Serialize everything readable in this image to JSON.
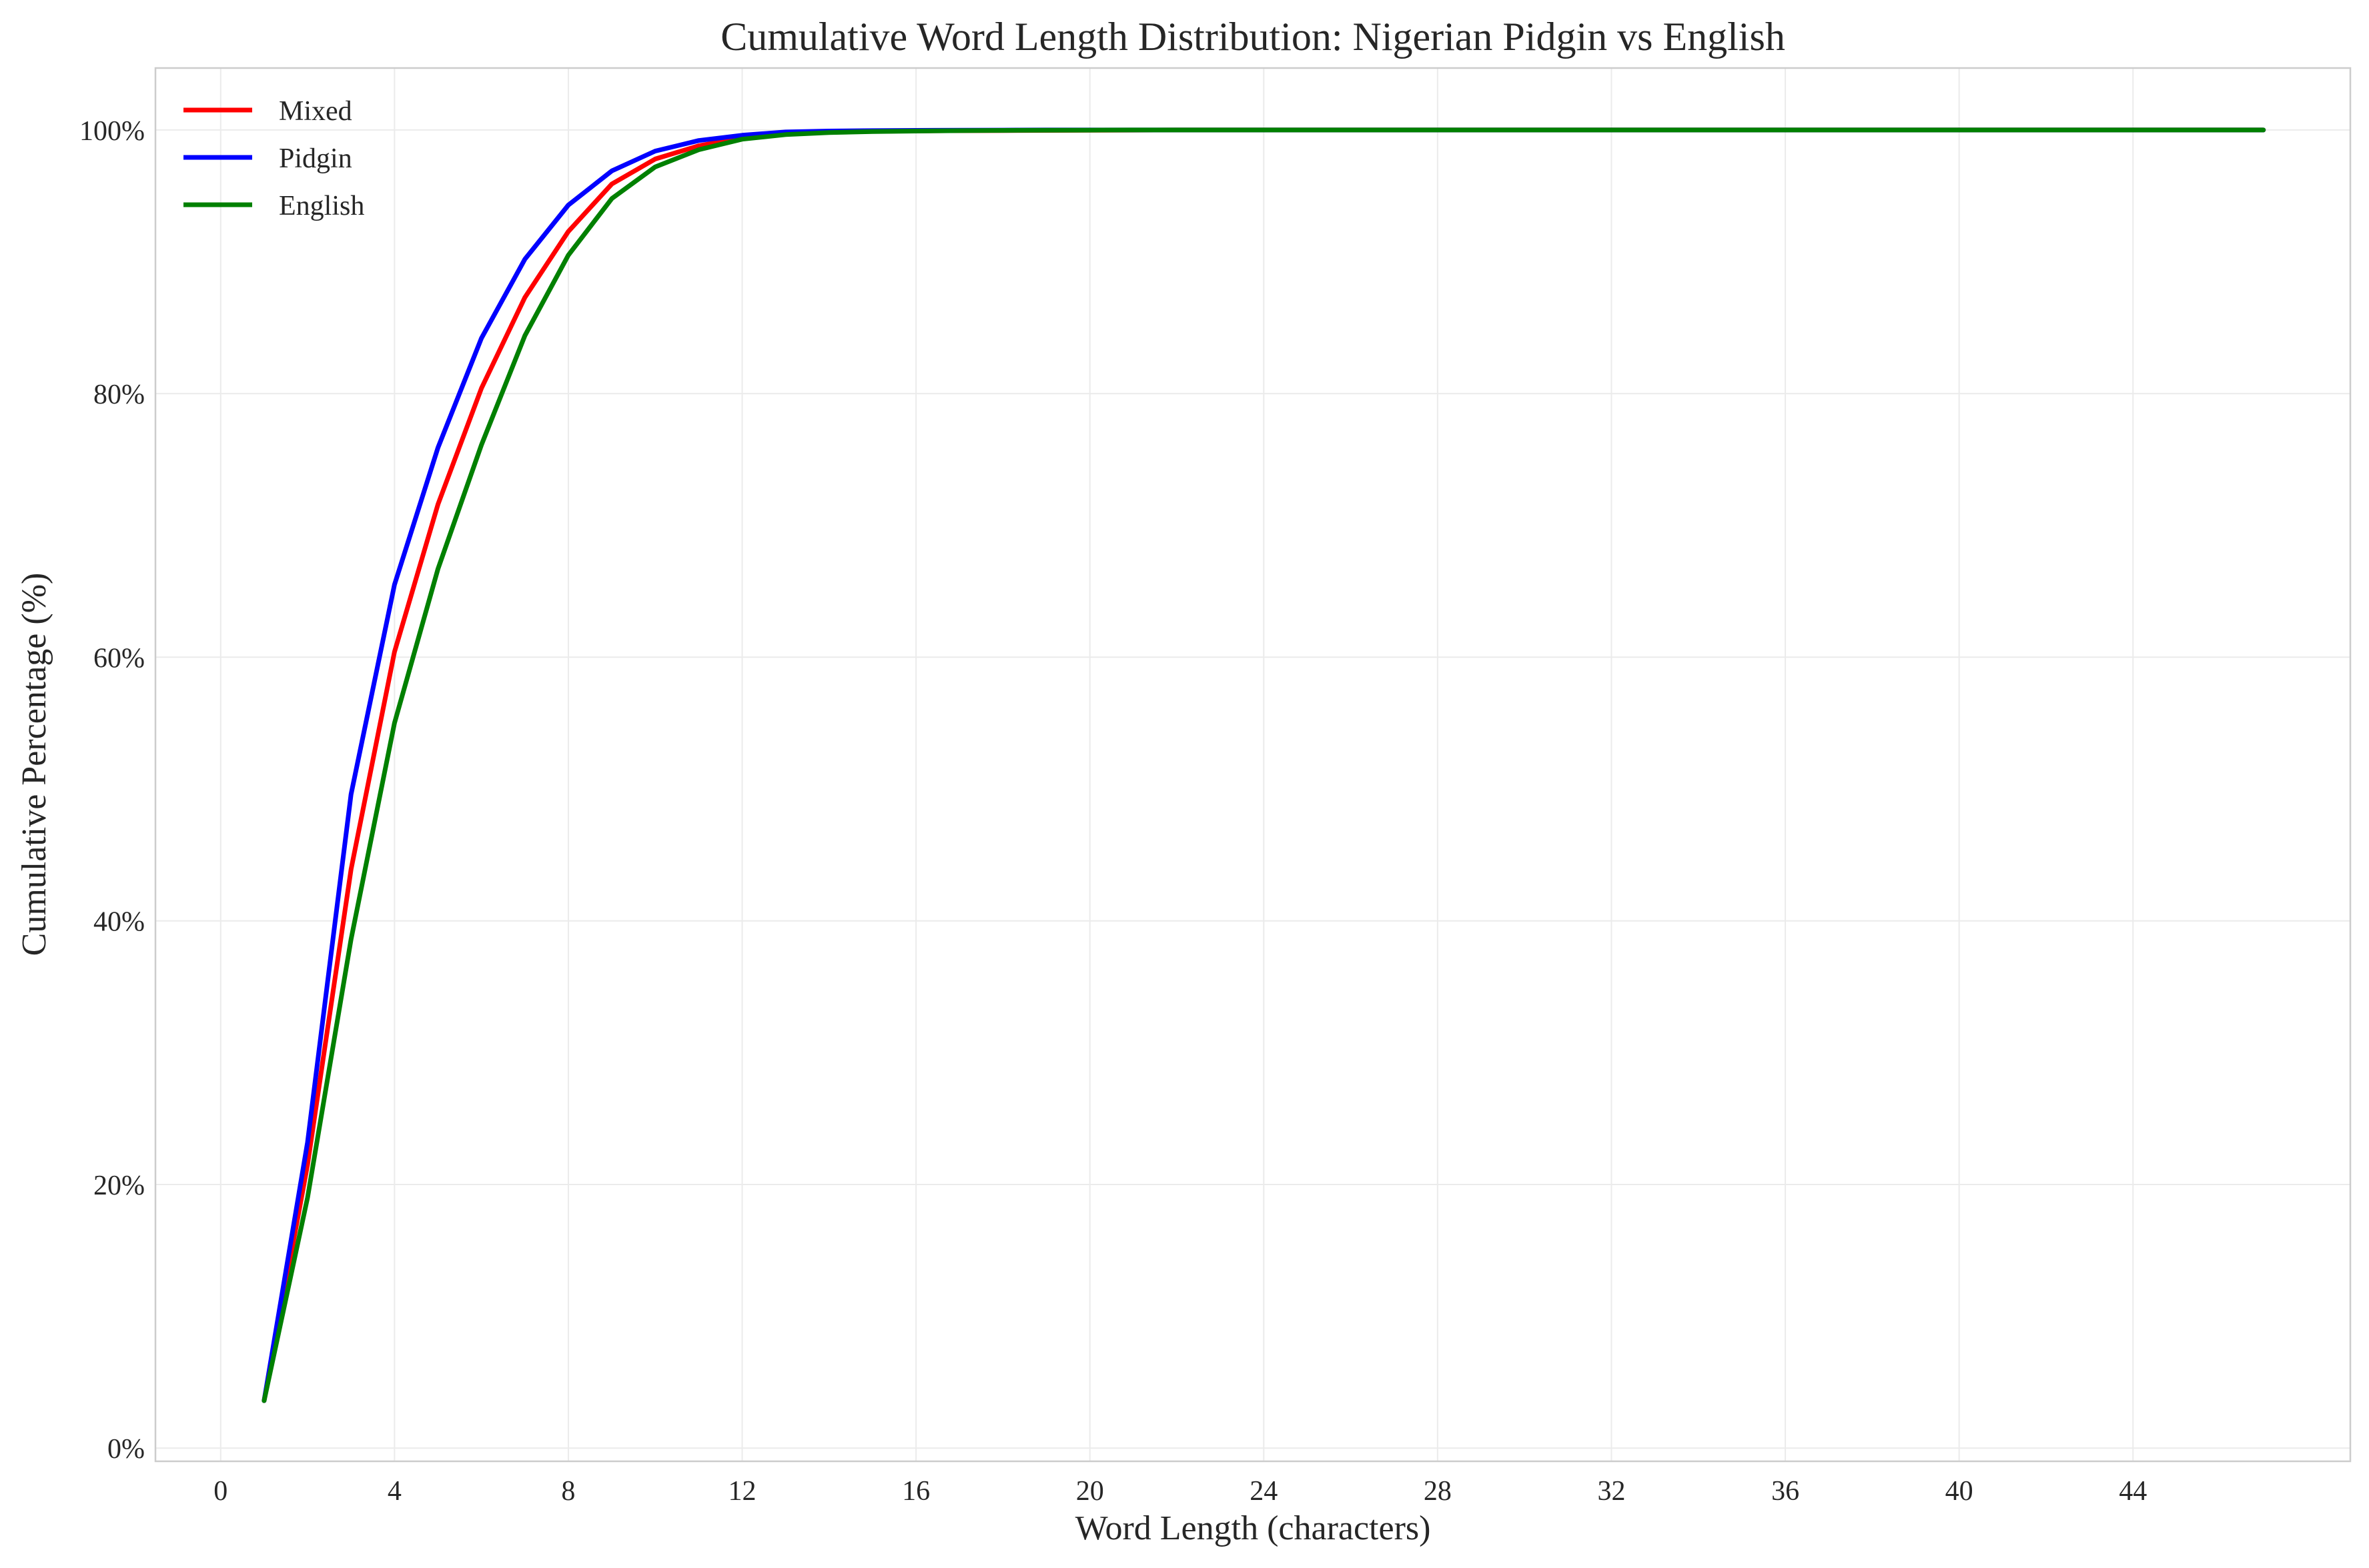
{
  "chart_data": {
    "type": "line",
    "title": "Cumulative Word Length Distribution: Nigerian Pidgin vs English",
    "xlabel": "Word Length (characters)",
    "ylabel": "Cumulative Percentage (%)",
    "xlim": [
      -1.5,
      49
    ],
    "ylim": [
      -1,
      104.7
    ],
    "x_ticks": [
      0,
      4,
      8,
      12,
      16,
      20,
      24,
      28,
      32,
      36,
      40,
      44
    ],
    "y_ticks": [
      0,
      20,
      40,
      60,
      80,
      100
    ],
    "y_tick_labels": [
      "0%",
      "20%",
      "40%",
      "60%",
      "80%",
      "100%"
    ],
    "grid": true,
    "legend_position": "top-left",
    "x": [
      1,
      2,
      3,
      4,
      5,
      6,
      7,
      8,
      9,
      10,
      11,
      12,
      13,
      14,
      15,
      16,
      17,
      18,
      19,
      20,
      21,
      22,
      23,
      24,
      25,
      26,
      27,
      28,
      29,
      30,
      31,
      32,
      33,
      34,
      35,
      36,
      37,
      38,
      39,
      40,
      41,
      42,
      43,
      44,
      45,
      46,
      47
    ],
    "series": [
      {
        "name": "Mixed",
        "color": "#ff0000",
        "values": [
          3.6,
          21.5,
          43.9,
          60.4,
          71.6,
          80.4,
          87.3,
          92.3,
          95.9,
          97.8,
          98.8,
          99.4,
          99.75,
          99.85,
          99.9,
          99.93,
          99.95,
          99.96,
          99.97,
          99.98,
          99.99,
          100,
          100,
          100,
          100,
          100,
          100,
          100,
          100,
          100,
          100,
          100,
          100,
          100,
          100,
          100,
          100,
          100,
          100,
          100,
          100,
          100,
          100,
          100,
          100,
          100,
          100
        ]
      },
      {
        "name": "Pidgin",
        "color": "#0000ff",
        "values": [
          3.6,
          23.2,
          49.6,
          65.5,
          75.9,
          84.2,
          90.2,
          94.3,
          96.9,
          98.4,
          99.2,
          99.6,
          99.85,
          99.92,
          99.95,
          99.97,
          99.98,
          99.99,
          100,
          100,
          100,
          100,
          100,
          100,
          100,
          100,
          100,
          100,
          100,
          100,
          100,
          100,
          100,
          100,
          100,
          100,
          100,
          100,
          100,
          100,
          100,
          100,
          100,
          100,
          100,
          100,
          100
        ]
      },
      {
        "name": "English",
        "color": "#008000",
        "values": [
          3.6,
          19.0,
          38.6,
          55.0,
          66.7,
          76.1,
          84.4,
          90.5,
          94.8,
          97.2,
          98.5,
          99.3,
          99.65,
          99.8,
          99.88,
          99.92,
          99.95,
          99.97,
          99.98,
          99.99,
          100,
          100,
          100,
          100,
          100,
          100,
          100,
          100,
          100,
          100,
          100,
          100,
          100,
          100,
          100,
          100,
          100,
          100,
          100,
          100,
          100,
          100,
          100,
          100,
          100,
          100,
          100
        ]
      }
    ]
  }
}
